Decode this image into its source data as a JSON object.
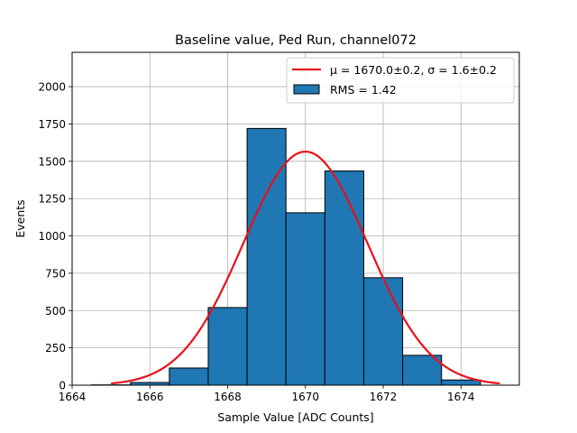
{
  "chart_data": {
    "type": "bar",
    "title": "Baseline value, Ped Run, channel072",
    "xlabel": "Sample Value [ADC Counts]",
    "ylabel": "Events",
    "xlim": [
      1664,
      1675.5
    ],
    "ylim": [
      0,
      2230
    ],
    "xticks": [
      1664,
      1666,
      1668,
      1670,
      1672,
      1674
    ],
    "yticks": [
      0,
      250,
      500,
      750,
      1000,
      1250,
      1500,
      1750,
      2000
    ],
    "grid": true,
    "legend_position": "top-right",
    "bar_color": "#1f77b4",
    "fit_color": "#e8101a",
    "bins": [
      {
        "x0": 1664.5,
        "x1": 1665.5,
        "value": 2
      },
      {
        "x0": 1665.5,
        "x1": 1666.5,
        "value": 18
      },
      {
        "x0": 1666.5,
        "x1": 1667.5,
        "value": 115
      },
      {
        "x0": 1667.5,
        "x1": 1668.5,
        "value": 520
      },
      {
        "x0": 1668.5,
        "x1": 1669.5,
        "value": 1720
      },
      {
        "x0": 1669.5,
        "x1": 1670.5,
        "value": 1155
      },
      {
        "x0": 1670.5,
        "x1": 1671.5,
        "value": 1435
      },
      {
        "x0": 1671.5,
        "x1": 1672.5,
        "value": 720
      },
      {
        "x0": 1672.5,
        "x1": 1673.5,
        "value": 200
      },
      {
        "x0": 1673.5,
        "x1": 1674.5,
        "value": 35
      }
    ],
    "fit": {
      "mu": 1670.0,
      "sigma": 1.6,
      "amplitude": 1565,
      "x_range": [
        1665,
        1675
      ]
    },
    "legend": [
      {
        "kind": "line",
        "label": "μ = 1670.0±0.2, σ = 1.6±0.2"
      },
      {
        "kind": "patch",
        "label": "RMS = 1.42"
      }
    ]
  }
}
